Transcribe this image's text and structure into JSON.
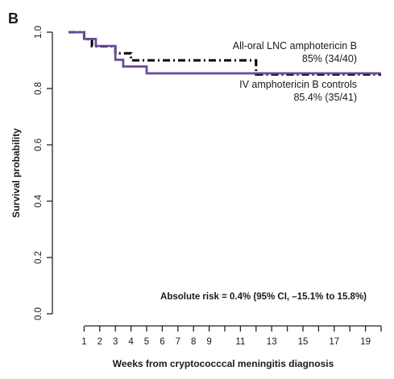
{
  "panel_label": "B",
  "chart_data": {
    "type": "line",
    "xlabel": "Weeks from cryptococccal meningitis diagnosis",
    "ylabel": "Survival probability",
    "xlim": [
      0,
      20
    ],
    "ylim": [
      0,
      1.0
    ],
    "x_ticks": [
      1,
      2,
      3,
      4,
      5,
      6,
      7,
      8,
      9,
      11,
      13,
      15,
      17,
      19
    ],
    "y_ticks": [
      "0.0",
      "0.2",
      "0.4",
      "0.6",
      "0.8",
      "1.0"
    ],
    "series": [
      {
        "name": "All-oral LNC amphotericin B",
        "label_line1": "All-oral LNC amphotericin B",
        "label_line2": "85% (34/40)",
        "style": "dash-dot",
        "color": "#000000",
        "x": [
          0,
          1,
          1.5,
          3,
          4,
          12,
          20
        ],
        "y": [
          1.0,
          0.975,
          0.95,
          0.925,
          0.9,
          0.85,
          0.85
        ]
      },
      {
        "name": "IV amphotericin B controls",
        "label_line1": "IV amphotericin B controls",
        "label_line2": "85.4% (35/41)",
        "style": "solid",
        "color": "#6b4c9a",
        "x": [
          0,
          1,
          1.75,
          2,
          3,
          3.5,
          5,
          20
        ],
        "y": [
          1.0,
          0.976,
          0.951,
          0.951,
          0.902,
          0.878,
          0.854,
          0.854
        ]
      }
    ],
    "annotation": "Absolute risk = 0.4% (95% CI, –15.1% to 15.8%)",
    "grid": false,
    "legend": "inline labels near curves"
  }
}
